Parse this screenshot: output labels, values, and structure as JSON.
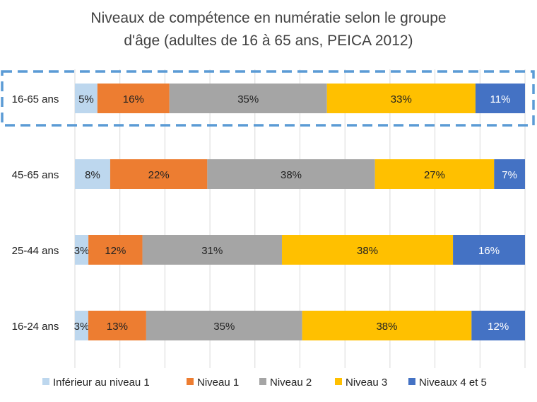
{
  "chart_data": {
    "type": "bar",
    "orientation": "horizontal",
    "stacked": true,
    "title_lines": [
      "Niveaux de compétence en numératie selon le groupe",
      "d'âge (adultes de 16 à 65 ans, PEICA 2012)"
    ],
    "categories": [
      "16-65 ans",
      "45-65 ans",
      "25-44 ans",
      "16-24 ans"
    ],
    "highlighted_category": "16-65 ans",
    "series": [
      {
        "name": "Inférieur au niveau 1",
        "color": "#bdd7ee",
        "label_color": "#222222",
        "values": [
          5,
          8,
          3,
          3
        ],
        "labels": [
          "5%",
          "8%",
          "3%",
          "3%"
        ]
      },
      {
        "name": "Niveau 1",
        "color": "#ed7d31",
        "label_color": "#222222",
        "values": [
          16,
          22,
          12,
          13
        ],
        "labels": [
          "16%",
          "22%",
          "12%",
          "13%"
        ]
      },
      {
        "name": "Niveau 2",
        "color": "#a5a5a5",
        "label_color": "#222222",
        "values": [
          35,
          38,
          31,
          35
        ],
        "labels": [
          "35%",
          "38%",
          "31%",
          "35%"
        ]
      },
      {
        "name": "Niveau 3",
        "color": "#ffc000",
        "label_color": "#222222",
        "values": [
          33,
          27,
          38,
          38
        ],
        "labels": [
          "33%",
          "27%",
          "38%",
          "38%"
        ]
      },
      {
        "name": "Niveaux 4 et 5",
        "color": "#4472c4",
        "label_color": "#ffffff",
        "values": [
          11,
          7,
          16,
          12
        ],
        "labels": [
          "11%",
          "7%",
          "16%",
          "12%"
        ]
      }
    ],
    "xlim": [
      0,
      100
    ],
    "grid": true,
    "legend_position": "bottom"
  }
}
